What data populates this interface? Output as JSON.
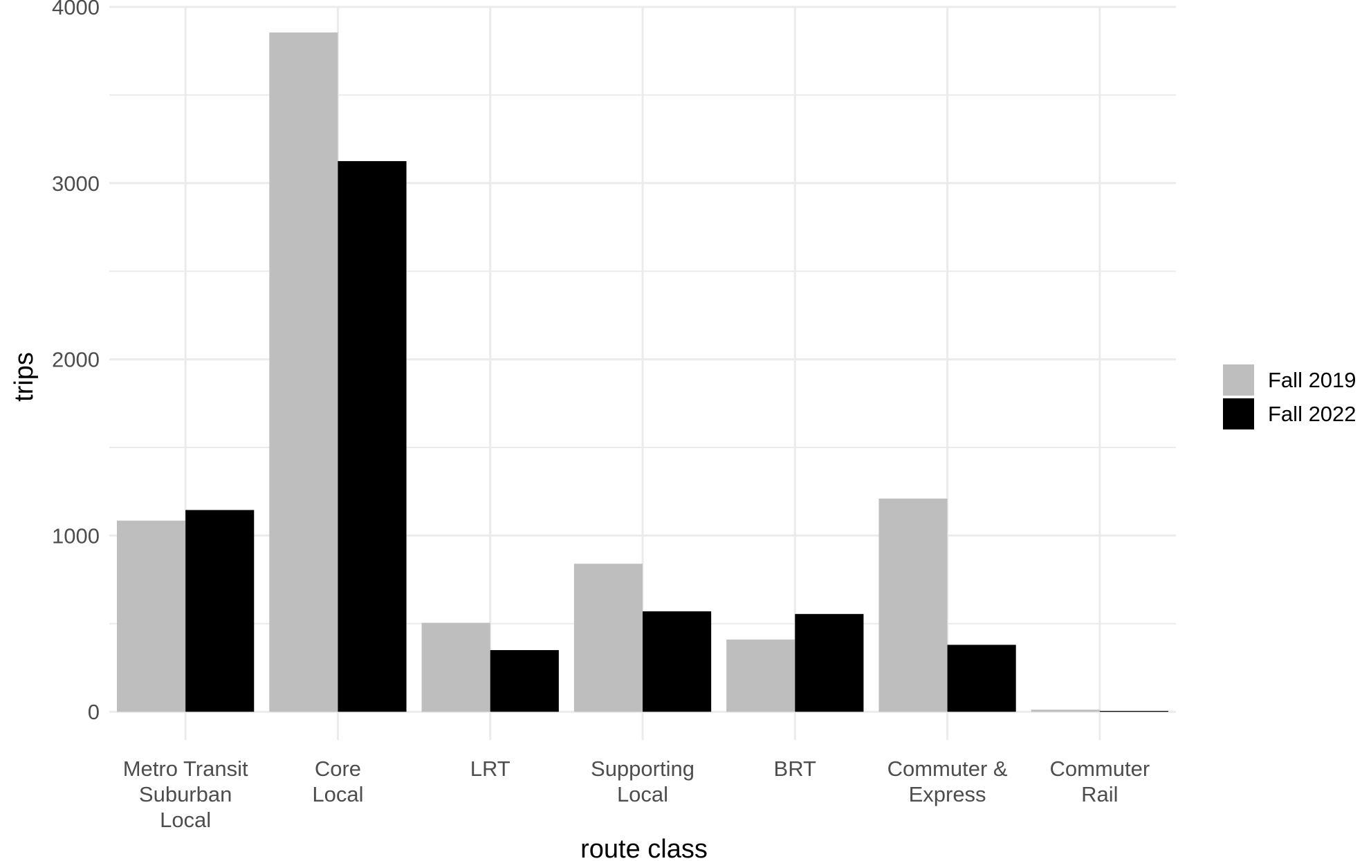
{
  "chart_data": {
    "type": "bar",
    "title": "",
    "xlabel": "route class",
    "ylabel": "trips",
    "ylim": [
      -160,
      4000
    ],
    "yticks": [
      0,
      1000,
      2000,
      3000,
      4000
    ],
    "grid": true,
    "legend_position": "right",
    "categories": [
      [
        "Metro Transit",
        "Suburban",
        "Local"
      ],
      [
        "Core",
        "Local"
      ],
      [
        "LRT"
      ],
      [
        "Supporting",
        "Local"
      ],
      [
        "BRT"
      ],
      [
        "Commuter &",
        "Express"
      ],
      [
        "Commuter",
        "Rail"
      ]
    ],
    "series": [
      {
        "name": "Fall 2019",
        "color": "#bebebe",
        "values": [
          1085,
          3855,
          505,
          840,
          410,
          1210,
          12
        ]
      },
      {
        "name": "Fall 2022",
        "color": "#000000",
        "values": [
          1145,
          3125,
          350,
          570,
          555,
          380,
          5
        ]
      }
    ]
  }
}
